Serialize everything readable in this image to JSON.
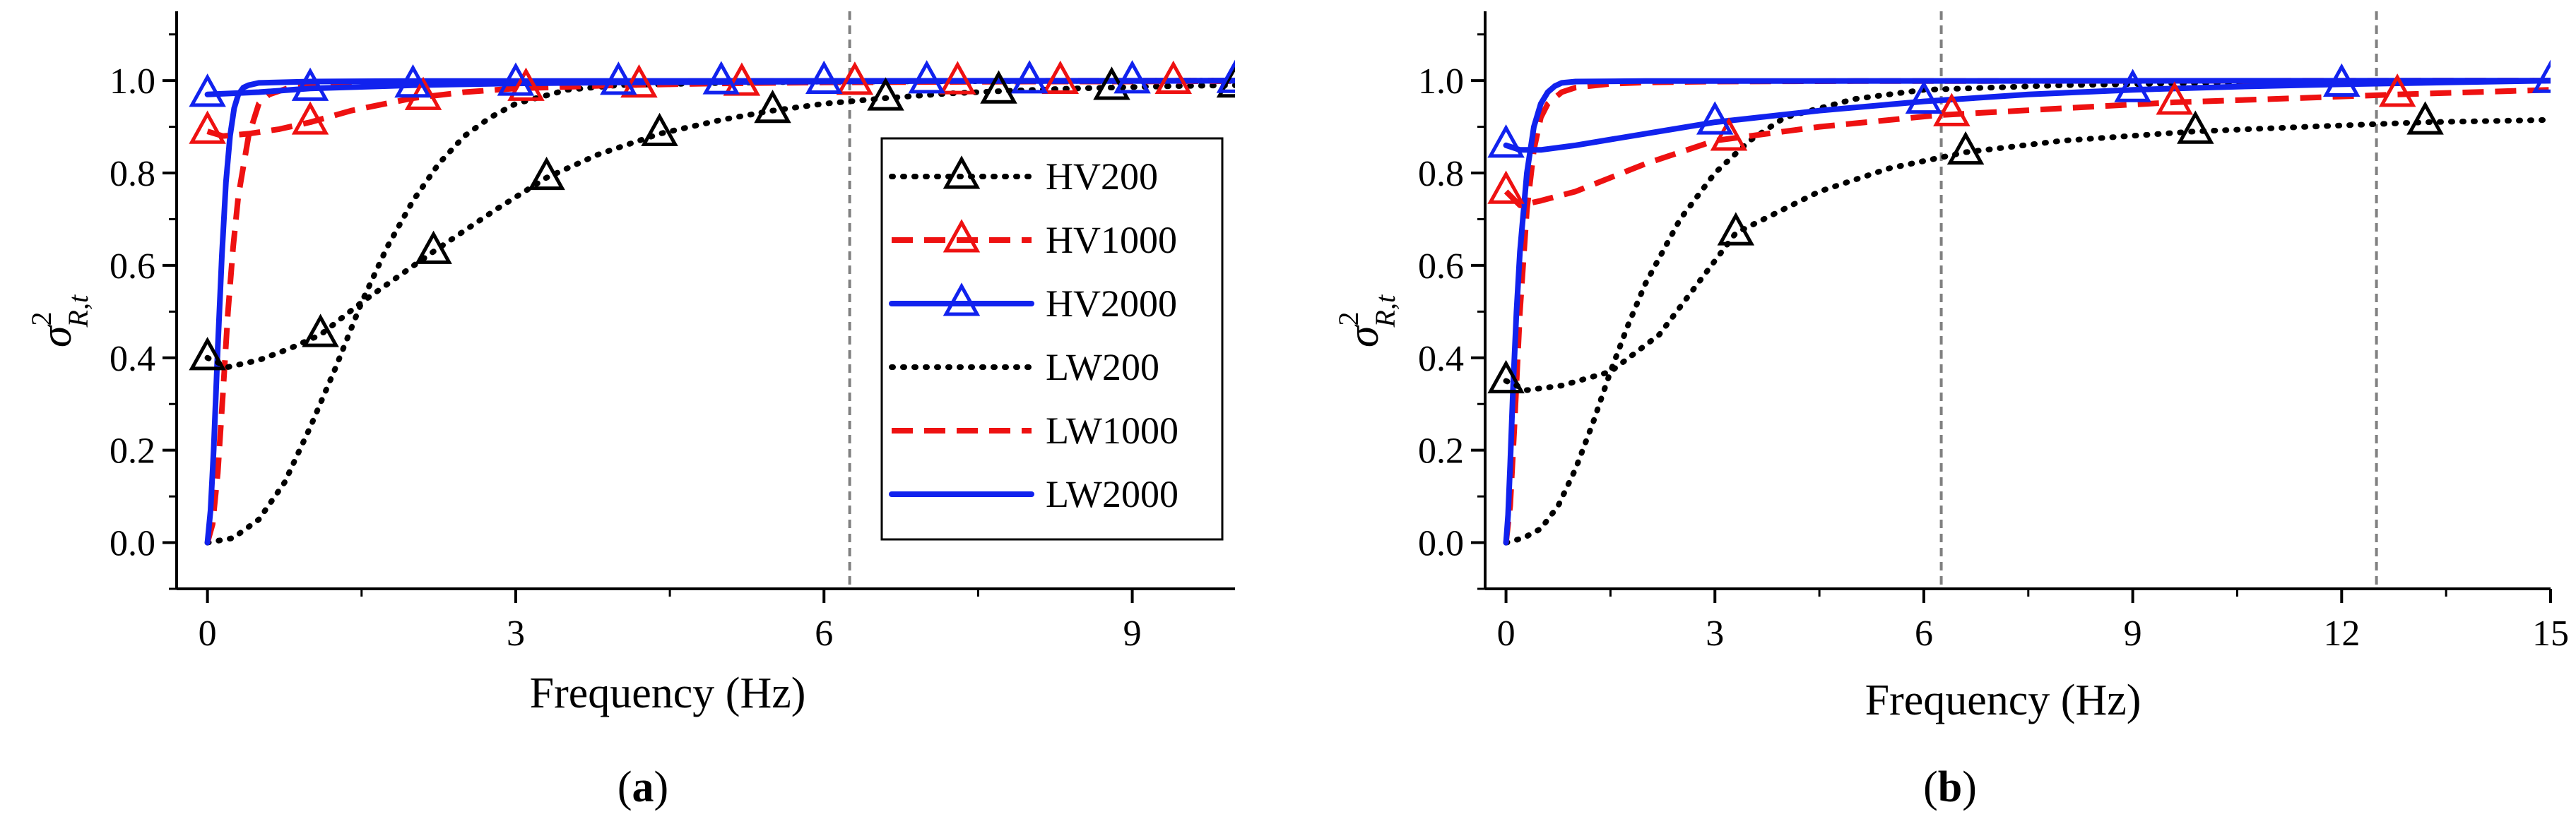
{
  "figure": {
    "panel_labels": [
      {
        "open": "(",
        "letter": "a",
        "close": ")"
      },
      {
        "open": "(",
        "letter": "b",
        "close": ")"
      }
    ]
  },
  "colors": {
    "black": "#000000",
    "red": "#ee1111",
    "blue": "#1122ee",
    "ref_line": "#808080"
  },
  "legend": {
    "entries": [
      {
        "label": "HV200",
        "series": "HV200"
      },
      {
        "label": "HV1000",
        "series": "HV1000"
      },
      {
        "label": "HV2000",
        "series": "HV2000"
      },
      {
        "label": "LW200",
        "series": "LW200"
      },
      {
        "label": "LW1000",
        "series": "LW1000"
      },
      {
        "label": "LW2000",
        "series": "LW2000"
      }
    ]
  },
  "chart_data": [
    {
      "type": "line",
      "panel": "a",
      "xlabel": "Frequency (Hz)",
      "ylabel": {
        "base": "σ",
        "sup": "2",
        "sub": "R,t"
      },
      "xlim": [
        -0.3,
        10
      ],
      "ylim": [
        -0.1,
        1.15
      ],
      "xticks": [
        0,
        3,
        6,
        9
      ],
      "xtick_labels": [
        "0",
        "3",
        "6",
        "9"
      ],
      "yticks": [
        0,
        0.2,
        0.4,
        0.6,
        0.8,
        1.0
      ],
      "ytick_labels": [
        "0.0",
        "0.2",
        "0.4",
        "0.6",
        "0.8",
        "1.0"
      ],
      "ref_lines_x": [
        6.25
      ],
      "legend_position": "right, inside",
      "series": [
        {
          "name": "HV200",
          "color": "black",
          "style": "dotted",
          "marker": "triangle",
          "x": [
            0,
            0.2,
            0.5,
            0.8,
            1.1,
            1.5,
            2.2,
            2.8,
            3.3,
            3.8,
            4.4,
            5.0,
            5.5,
            6.0,
            6.6,
            7.2,
            7.7,
            8.3,
            8.8,
            9.4,
            10.0
          ],
          "y": [
            0.4,
            0.38,
            0.395,
            0.42,
            0.45,
            0.52,
            0.63,
            0.72,
            0.79,
            0.84,
            0.885,
            0.915,
            0.935,
            0.95,
            0.962,
            0.972,
            0.977,
            0.982,
            0.985,
            0.988,
            0.99
          ],
          "markers_x": [
            0,
            1.1,
            2.2,
            3.3,
            4.4,
            5.5,
            6.6,
            7.7,
            8.8,
            10.0
          ],
          "markers_y": [
            0.4,
            0.45,
            0.63,
            0.79,
            0.885,
            0.935,
            0.962,
            0.977,
            0.985,
            0.99
          ]
        },
        {
          "name": "HV1000",
          "color": "red",
          "style": "dashed",
          "marker": "triangle",
          "x": [
            0,
            0.15,
            0.4,
            0.7,
            1.0,
            1.4,
            2.0,
            2.5,
            3.0,
            4.0,
            5.0,
            6.0,
            7.0,
            8.0,
            9.0,
            10.0
          ],
          "y": [
            0.89,
            0.88,
            0.885,
            0.895,
            0.91,
            0.935,
            0.962,
            0.975,
            0.983,
            0.99,
            0.994,
            0.996,
            0.997,
            0.998,
            0.998,
            0.999
          ],
          "markers_x": [
            0,
            1.0,
            2.1,
            3.1,
            4.2,
            5.2,
            6.3,
            7.3,
            8.3,
            9.4
          ],
          "markers_y": [
            0.89,
            0.91,
            0.963,
            0.983,
            0.99,
            0.994,
            0.996,
            0.997,
            0.998,
            0.998
          ]
        },
        {
          "name": "HV2000",
          "color": "blue",
          "style": "solid",
          "marker": "triangle",
          "x": [
            0,
            0.5,
            1.0,
            2.0,
            3.0,
            4.0,
            5.0,
            6.0,
            7.0,
            8.0,
            9.0,
            10.0
          ],
          "y": [
            0.97,
            0.975,
            0.983,
            0.99,
            0.994,
            0.996,
            0.997,
            0.998,
            0.999,
            0.999,
            0.999,
            1.0
          ],
          "markers_x": [
            0,
            1.0,
            2.0,
            3.0,
            4.0,
            5.0,
            6.0,
            7.0,
            8.0,
            9.0,
            10.0
          ],
          "markers_y": [
            0.97,
            0.983,
            0.99,
            0.994,
            0.996,
            0.997,
            0.998,
            0.999,
            0.999,
            0.999,
            1.0
          ]
        },
        {
          "name": "LW200",
          "color": "black",
          "style": "dotted",
          "marker": "none",
          "x": [
            0,
            0.25,
            0.5,
            0.75,
            1.0,
            1.25,
            1.5,
            1.75,
            2.0,
            2.25,
            2.5,
            2.75,
            3.0,
            3.5,
            4.0,
            5.0,
            6.0,
            8.0,
            10.0
          ],
          "y": [
            0.0,
            0.01,
            0.05,
            0.13,
            0.25,
            0.38,
            0.52,
            0.64,
            0.74,
            0.82,
            0.88,
            0.92,
            0.95,
            0.98,
            0.99,
            0.995,
            0.998,
            0.999,
            1.0
          ]
        },
        {
          "name": "LW1000",
          "color": "red",
          "style": "dashed",
          "marker": "none",
          "x": [
            0,
            0.05,
            0.1,
            0.15,
            0.2,
            0.25,
            0.3,
            0.4,
            0.5,
            0.6,
            0.8,
            1.0,
            1.5,
            2.0,
            3.0,
            5.0,
            10.0
          ],
          "y": [
            0.0,
            0.04,
            0.15,
            0.32,
            0.5,
            0.64,
            0.75,
            0.88,
            0.95,
            0.97,
            0.985,
            0.99,
            0.995,
            0.997,
            0.998,
            0.999,
            1.0
          ]
        },
        {
          "name": "LW2000",
          "color": "blue",
          "style": "solid",
          "marker": "none",
          "x": [
            0,
            0.03,
            0.06,
            0.1,
            0.14,
            0.18,
            0.22,
            0.26,
            0.3,
            0.35,
            0.4,
            0.5,
            1.0,
            2.0,
            10.0
          ],
          "y": [
            0.0,
            0.07,
            0.2,
            0.42,
            0.62,
            0.78,
            0.88,
            0.94,
            0.97,
            0.985,
            0.99,
            0.995,
            0.998,
            0.999,
            1.0
          ]
        }
      ]
    },
    {
      "type": "line",
      "panel": "b",
      "xlabel": "Frequency (Hz)",
      "ylabel": {
        "base": "σ",
        "sup": "2",
        "sub": "R,t"
      },
      "xlim": [
        -0.3,
        15
      ],
      "ylim": [
        -0.1,
        1.15
      ],
      "xticks": [
        0,
        3,
        6,
        9,
        12,
        15
      ],
      "xtick_labels": [
        "0",
        "3",
        "6",
        "9",
        "12",
        "15"
      ],
      "yticks": [
        0,
        0.2,
        0.4,
        0.6,
        0.8,
        1.0
      ],
      "ytick_labels": [
        "0.0",
        "0.2",
        "0.4",
        "0.6",
        "0.8",
        "1.0"
      ],
      "ref_lines_x": [
        6.25,
        12.5
      ],
      "legend_position": "none",
      "series": [
        {
          "name": "HV200",
          "color": "black",
          "style": "dotted",
          "marker": "triangle",
          "x": [
            0,
            0.3,
            0.8,
            1.5,
            2.2,
            3.3,
            4.5,
            5.5,
            6.6,
            8.0,
            9.9,
            11.5,
            13.2,
            15.0
          ],
          "y": [
            0.35,
            0.33,
            0.34,
            0.37,
            0.45,
            0.67,
            0.76,
            0.81,
            0.845,
            0.87,
            0.89,
            0.9,
            0.91,
            0.915
          ],
          "markers_x": [
            0,
            3.3,
            6.6,
            9.9,
            13.2
          ],
          "markers_y": [
            0.35,
            0.67,
            0.845,
            0.89,
            0.91
          ]
        },
        {
          "name": "HV1000",
          "color": "red",
          "style": "dashed",
          "marker": "triangle",
          "x": [
            0,
            0.2,
            0.5,
            1.0,
            2.0,
            3.0,
            4.5,
            6.2,
            8.0,
            9.6,
            11.0,
            12.8,
            15.0
          ],
          "y": [
            0.76,
            0.73,
            0.74,
            0.76,
            0.82,
            0.87,
            0.9,
            0.925,
            0.94,
            0.953,
            0.96,
            0.97,
            0.98
          ],
          "markers_x": [
            0,
            3.2,
            6.4,
            9.6,
            12.8
          ],
          "markers_y": [
            0.76,
            0.875,
            0.928,
            0.953,
            0.97
          ]
        },
        {
          "name": "HV2000",
          "color": "blue",
          "style": "solid",
          "marker": "triangle",
          "x": [
            0,
            0.2,
            0.5,
            1.0,
            2.0,
            3.0,
            4.5,
            6.0,
            7.5,
            9.0,
            10.5,
            12.0,
            13.5,
            15.0
          ],
          "y": [
            0.86,
            0.85,
            0.85,
            0.86,
            0.885,
            0.91,
            0.935,
            0.955,
            0.97,
            0.98,
            0.987,
            0.992,
            0.996,
            1.0
          ],
          "markers_x": [
            0,
            3.0,
            6.0,
            9.0,
            12.0,
            15.0
          ],
          "markers_y": [
            0.86,
            0.91,
            0.955,
            0.98,
            0.992,
            1.0
          ]
        },
        {
          "name": "LW200",
          "color": "black",
          "style": "dotted",
          "marker": "none",
          "x": [
            0,
            0.25,
            0.5,
            0.75,
            1.0,
            1.25,
            1.5,
            1.75,
            2.0,
            2.5,
            3.0,
            3.5,
            4.0,
            5.0,
            6.0,
            8.0,
            10.0,
            15.0
          ],
          "y": [
            0.0,
            0.01,
            0.03,
            0.08,
            0.16,
            0.26,
            0.37,
            0.47,
            0.56,
            0.7,
            0.8,
            0.87,
            0.92,
            0.96,
            0.98,
            0.99,
            0.995,
            1.0
          ]
        },
        {
          "name": "LW1000",
          "color": "red",
          "style": "dashed",
          "marker": "none",
          "x": [
            0,
            0.06,
            0.12,
            0.2,
            0.3,
            0.4,
            0.5,
            0.6,
            0.8,
            1.0,
            1.5,
            2.0,
            3.0,
            5.0,
            15.0
          ],
          "y": [
            0.0,
            0.08,
            0.25,
            0.5,
            0.72,
            0.85,
            0.92,
            0.95,
            0.975,
            0.985,
            0.993,
            0.996,
            0.998,
            0.999,
            1.0
          ]
        },
        {
          "name": "LW2000",
          "color": "blue",
          "style": "solid",
          "marker": "none",
          "x": [
            0,
            0.03,
            0.06,
            0.1,
            0.15,
            0.2,
            0.3,
            0.4,
            0.5,
            0.6,
            0.7,
            0.8,
            1.0,
            2.0,
            15.0
          ],
          "y": [
            0.0,
            0.06,
            0.17,
            0.33,
            0.5,
            0.63,
            0.8,
            0.9,
            0.95,
            0.975,
            0.988,
            0.995,
            0.998,
            0.999,
            1.0
          ]
        }
      ]
    }
  ]
}
